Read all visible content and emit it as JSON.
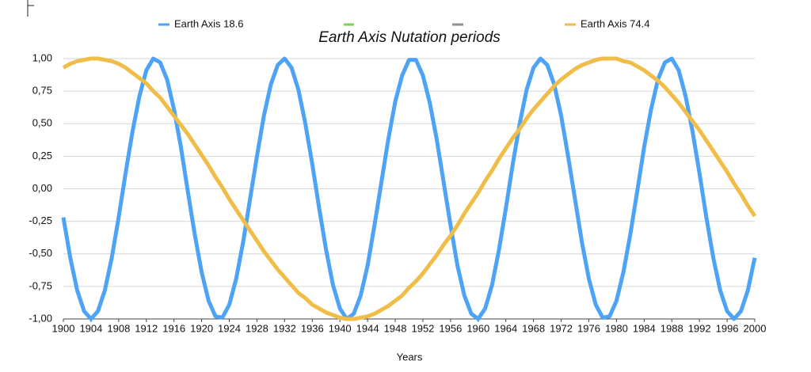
{
  "chart_data": {
    "type": "line",
    "title": "Earth Axis Nutation periods",
    "x_label": "Years",
    "legend": "top",
    "grid": true,
    "xlim": [
      1900,
      2000
    ],
    "xticks": [
      1900,
      1904,
      1908,
      1912,
      1916,
      1920,
      1924,
      1928,
      1932,
      1936,
      1940,
      1944,
      1948,
      1952,
      1956,
      1960,
      1964,
      1968,
      1972,
      1976,
      1980,
      1984,
      1988,
      1992,
      1996,
      2000
    ],
    "ylim": [
      -1,
      1
    ],
    "yticks": [
      {
        "value": -1,
        "label": "-1,00"
      },
      {
        "value": -0.75,
        "label": "-0,75"
      },
      {
        "value": -0.5,
        "label": "-0,50"
      },
      {
        "value": -0.25,
        "label": "-0,25"
      },
      {
        "value": 0,
        "label": "0,00"
      },
      {
        "value": 0.25,
        "label": "0,25"
      },
      {
        "value": 0.5,
        "label": "0,50"
      },
      {
        "value": 0.75,
        "label": "0,75"
      },
      {
        "value": 1,
        "label": "1,00"
      }
    ],
    "x": [
      1900,
      1901,
      1902,
      1903,
      1904,
      1905,
      1906,
      1907,
      1908,
      1909,
      1910,
      1911,
      1912,
      1913,
      1914,
      1915,
      1916,
      1917,
      1918,
      1919,
      1920,
      1921,
      1922,
      1923,
      1924,
      1925,
      1926,
      1927,
      1928,
      1929,
      1930,
      1931,
      1932,
      1933,
      1934,
      1935,
      1936,
      1937,
      1938,
      1939,
      1940,
      1941,
      1942,
      1943,
      1944,
      1945,
      1946,
      1947,
      1948,
      1949,
      1950,
      1951,
      1952,
      1953,
      1954,
      1955,
      1956,
      1957,
      1958,
      1959,
      1960,
      1961,
      1962,
      1963,
      1964,
      1965,
      1966,
      1967,
      1968,
      1969,
      1970,
      1971,
      1972,
      1973,
      1974,
      1975,
      1976,
      1977,
      1978,
      1979,
      1980,
      1981,
      1982,
      1983,
      1984,
      1985,
      1986,
      1987,
      1988,
      1989,
      1990,
      1991,
      1992,
      1993,
      1994,
      1995,
      1996,
      1997,
      1998,
      1999,
      2000
    ],
    "series": [
      {
        "name": "Earth Axis 18.6",
        "color": "#4da3f5",
        "values": [
          -0.22,
          -0.53,
          -0.78,
          -0.94,
          -1,
          -0.94,
          -0.78,
          -0.53,
          -0.22,
          0.12,
          0.44,
          0.71,
          0.91,
          1,
          0.97,
          0.84,
          0.61,
          0.32,
          -0.02,
          -0.35,
          -0.64,
          -0.86,
          -0.98,
          -0.99,
          -0.89,
          -0.69,
          -0.41,
          -0.08,
          0.25,
          0.56,
          0.8,
          0.95,
          1,
          0.93,
          0.76,
          0.5,
          0.19,
          -0.15,
          -0.47,
          -0.74,
          -0.92,
          -1,
          -0.96,
          -0.82,
          -0.59,
          -0.28,
          0.05,
          0.38,
          0.67,
          0.87,
          0.99,
          0.99,
          0.87,
          0.66,
          0.38,
          0.05,
          -0.28,
          -0.59,
          -0.82,
          -0.96,
          -1,
          -0.92,
          -0.74,
          -0.47,
          -0.15,
          0.19,
          0.5,
          0.76,
          0.93,
          1,
          0.95,
          0.8,
          0.56,
          0.25,
          -0.08,
          -0.41,
          -0.69,
          -0.89,
          -0.99,
          -0.98,
          -0.86,
          -0.64,
          -0.35,
          -0.02,
          0.32,
          0.61,
          0.84,
          0.97,
          1,
          0.91,
          0.71,
          0.44,
          0.12,
          -0.22,
          -0.53,
          -0.78,
          -0.94,
          -1,
          -0.94,
          -0.78,
          -0.53
        ]
      },
      {
        "name": "Earth Axis 74.4",
        "color": "#f0bd48",
        "values": [
          0.93,
          0.96,
          0.98,
          0.99,
          1,
          1,
          0.99,
          0.98,
          0.96,
          0.93,
          0.89,
          0.85,
          0.81,
          0.75,
          0.7,
          0.63,
          0.56,
          0.49,
          0.42,
          0.34,
          0.26,
          0.18,
          0.09,
          0.01,
          -0.08,
          -0.16,
          -0.24,
          -0.32,
          -0.4,
          -0.48,
          -0.55,
          -0.62,
          -0.68,
          -0.74,
          -0.8,
          -0.84,
          -0.89,
          -0.92,
          -0.95,
          -0.97,
          -0.99,
          -1,
          -1,
          -0.99,
          -0.98,
          -0.96,
          -0.93,
          -0.9,
          -0.86,
          -0.82,
          -0.76,
          -0.71,
          -0.65,
          -0.58,
          -0.51,
          -0.43,
          -0.36,
          -0.28,
          -0.19,
          -0.11,
          -0.03,
          0.06,
          0.14,
          0.23,
          0.31,
          0.39,
          0.46,
          0.54,
          0.61,
          0.67,
          0.73,
          0.79,
          0.84,
          0.88,
          0.92,
          0.95,
          0.97,
          0.99,
          1,
          1,
          1,
          0.98,
          0.97,
          0.94,
          0.91,
          0.87,
          0.83,
          0.78,
          0.72,
          0.66,
          0.59,
          0.52,
          0.45,
          0.37,
          0.29,
          0.21,
          0.13,
          0.04,
          -0.04,
          -0.13,
          -0.21
        ]
      }
    ]
  }
}
